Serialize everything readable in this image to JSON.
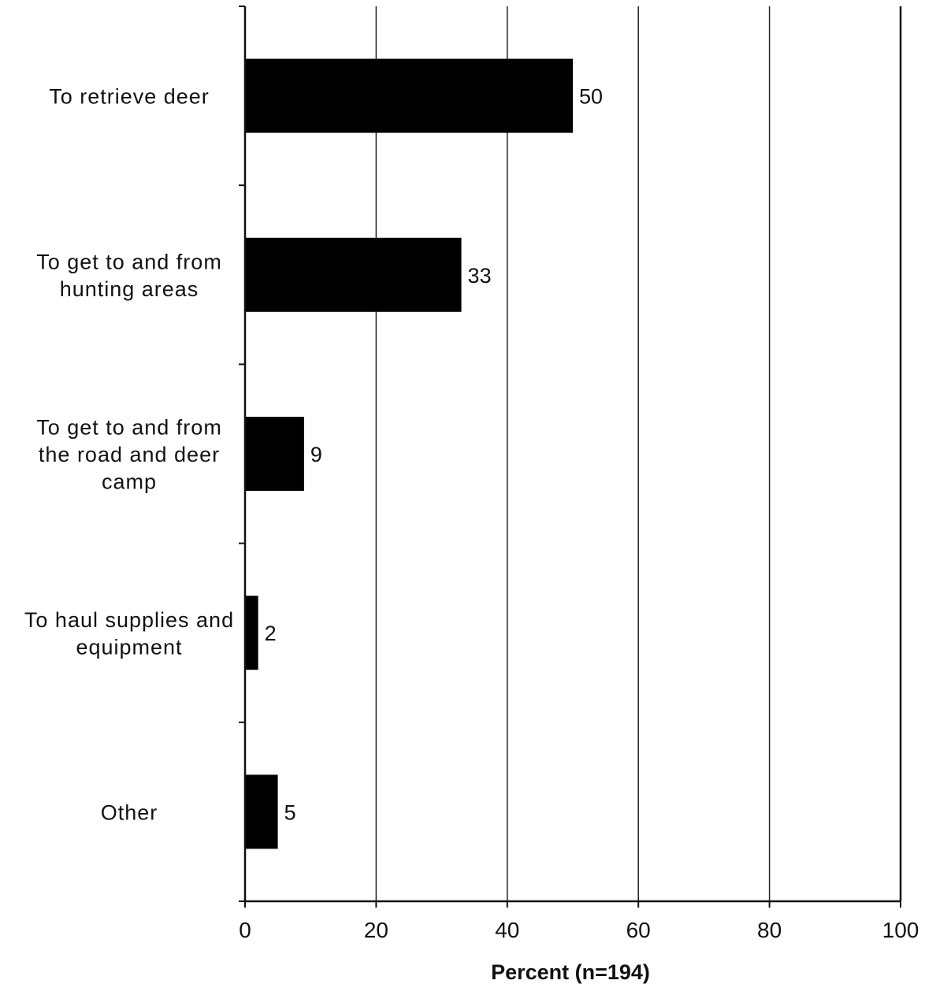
{
  "chart_data": {
    "type": "bar",
    "orientation": "horizontal",
    "categories": [
      "To retrieve deer",
      "To get to and from hunting areas",
      "To get to and from the road and deer camp",
      "To haul supplies and equipment",
      "Other"
    ],
    "category_lines": [
      [
        "To retrieve deer"
      ],
      [
        "To get to and from",
        "hunting areas"
      ],
      [
        "To get to and from",
        "the road and deer",
        "camp"
      ],
      [
        "To haul supplies and",
        "equipment"
      ],
      [
        "Other"
      ]
    ],
    "values": [
      50,
      33,
      9,
      2,
      5
    ],
    "data_labels": [
      "50",
      "33",
      "9",
      "2",
      "5"
    ],
    "xlabel": "Percent (n=194)",
    "xlim": [
      0,
      100
    ],
    "xticks": [
      0,
      20,
      40,
      60,
      80,
      100
    ],
    "grid": "vertical",
    "legend": "none",
    "bar_color": "#000000"
  }
}
